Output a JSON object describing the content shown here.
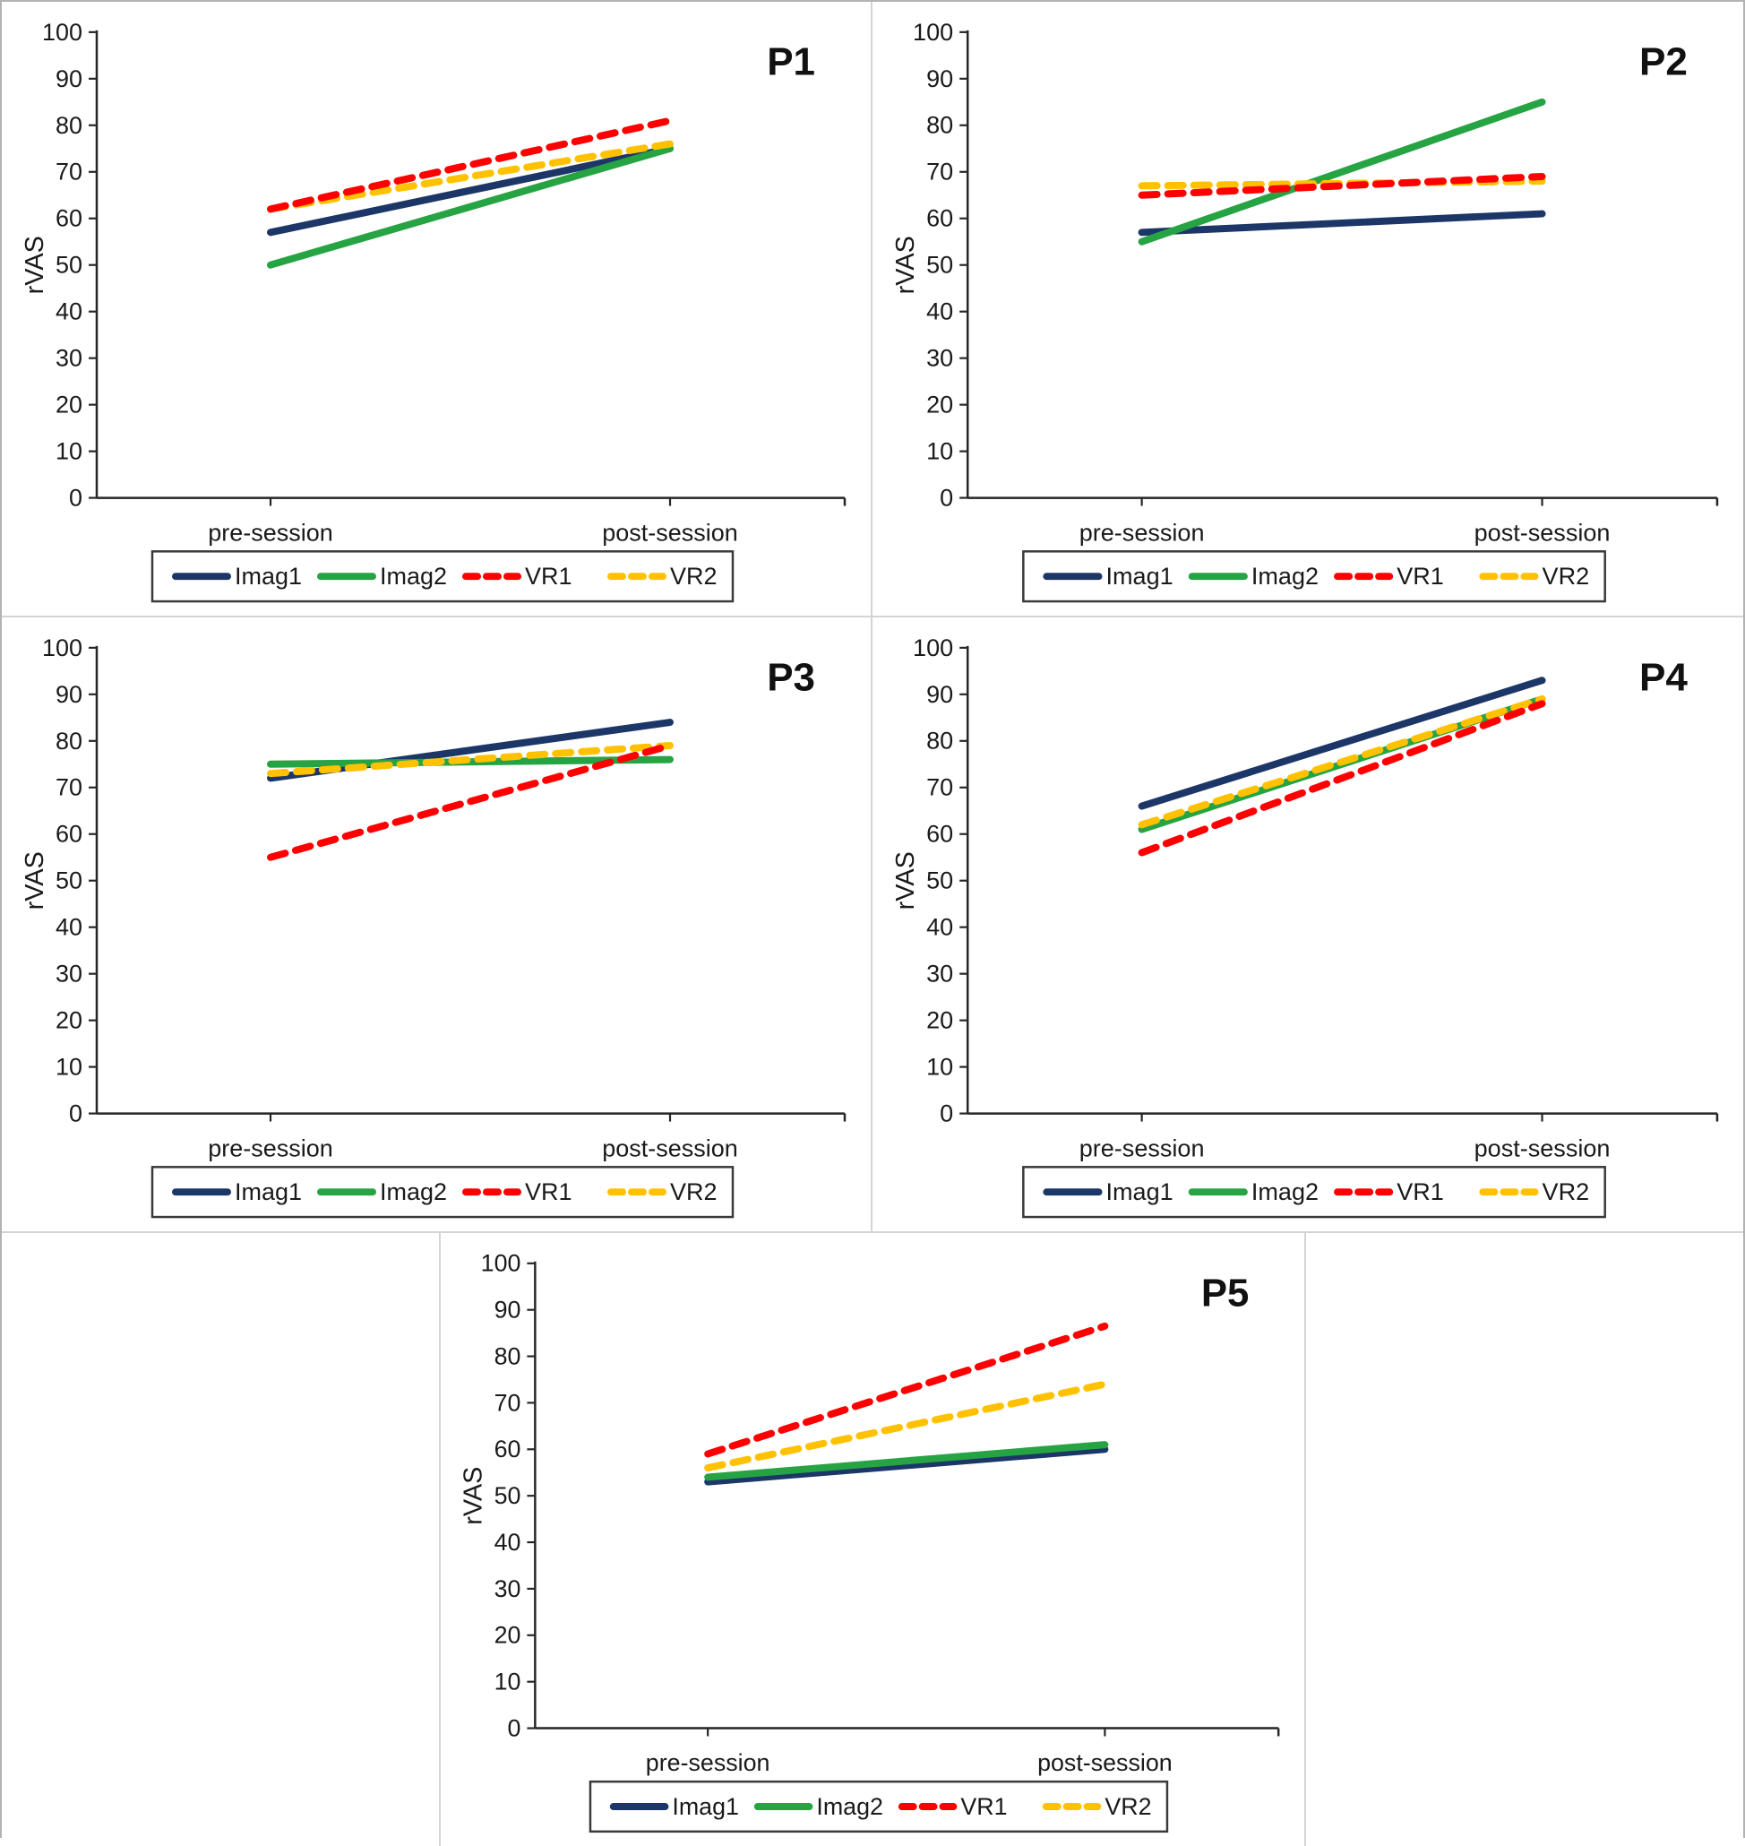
{
  "page": {
    "background": "#ffffff",
    "outer_border_color": "#b3b3b3",
    "divider_color": "#d4d4d4",
    "axis_color": "#262626",
    "text_color": "#1a1a1a",
    "legend_border_color": "#3a3a3a"
  },
  "chart_data": [
    {
      "type": "line",
      "title": "P1",
      "ylabel": "rVAS",
      "xlabel": "",
      "ylim": [
        0,
        100
      ],
      "y_tick_step": 10,
      "grid": false,
      "legend_position": "bottom",
      "categories": [
        "pre-session",
        "post-session"
      ],
      "series": [
        {
          "name": "Imag1",
          "color": "#1c3667",
          "style": "solid",
          "values": [
            57,
            75
          ]
        },
        {
          "name": "Imag2",
          "color": "#26a444",
          "style": "solid",
          "values": [
            50,
            75
          ]
        },
        {
          "name": "VR1",
          "color": "#fe0000",
          "style": "dashed",
          "values": [
            62,
            81
          ]
        },
        {
          "name": "VR2",
          "color": "#ffc100",
          "style": "dashed",
          "values": [
            62,
            76
          ]
        }
      ]
    },
    {
      "type": "line",
      "title": "P2",
      "ylabel": "rVAS",
      "xlabel": "",
      "ylim": [
        0,
        100
      ],
      "y_tick_step": 10,
      "grid": false,
      "legend_position": "bottom",
      "categories": [
        "pre-session",
        "post-session"
      ],
      "series": [
        {
          "name": "Imag1",
          "color": "#1c3667",
          "style": "solid",
          "values": [
            57,
            61
          ]
        },
        {
          "name": "Imag2",
          "color": "#26a444",
          "style": "solid",
          "values": [
            55,
            85
          ]
        },
        {
          "name": "VR1",
          "color": "#fe0000",
          "style": "dashed",
          "values": [
            65,
            69
          ]
        },
        {
          "name": "VR2",
          "color": "#ffc100",
          "style": "dashed",
          "values": [
            67,
            68
          ]
        }
      ]
    },
    {
      "type": "line",
      "title": "P3",
      "ylabel": "rVAS",
      "xlabel": "",
      "ylim": [
        0,
        100
      ],
      "y_tick_step": 10,
      "grid": false,
      "legend_position": "bottom",
      "categories": [
        "pre-session",
        "post-session"
      ],
      "series": [
        {
          "name": "Imag1",
          "color": "#1c3667",
          "style": "solid",
          "values": [
            72,
            84
          ]
        },
        {
          "name": "Imag2",
          "color": "#26a444",
          "style": "solid",
          "values": [
            75,
            76
          ]
        },
        {
          "name": "VR1",
          "color": "#fe0000",
          "style": "dashed",
          "values": [
            55,
            79
          ]
        },
        {
          "name": "VR2",
          "color": "#ffc100",
          "style": "dashed",
          "values": [
            73,
            79
          ]
        }
      ]
    },
    {
      "type": "line",
      "title": "P4",
      "ylabel": "rVAS",
      "xlabel": "",
      "ylim": [
        0,
        100
      ],
      "y_tick_step": 10,
      "grid": false,
      "legend_position": "bottom",
      "categories": [
        "pre-session",
        "post-session"
      ],
      "series": [
        {
          "name": "Imag1",
          "color": "#1c3667",
          "style": "solid",
          "values": [
            66,
            93
          ]
        },
        {
          "name": "Imag2",
          "color": "#26a444",
          "style": "solid",
          "values": [
            61,
            89
          ]
        },
        {
          "name": "VR1",
          "color": "#fe0000",
          "style": "dashed",
          "values": [
            56,
            88
          ]
        },
        {
          "name": "VR2",
          "color": "#ffc100",
          "style": "dashed",
          "values": [
            62,
            89
          ]
        }
      ]
    },
    {
      "type": "line",
      "title": "P5",
      "ylabel": "rVAS",
      "xlabel": "",
      "ylim": [
        0,
        100
      ],
      "y_tick_step": 10,
      "grid": false,
      "legend_position": "bottom",
      "categories": [
        "pre-session",
        "post-session"
      ],
      "series": [
        {
          "name": "Imag1",
          "color": "#1c3667",
          "style": "solid",
          "values": [
            53,
            60
          ]
        },
        {
          "name": "Imag2",
          "color": "#26a444",
          "style": "solid",
          "values": [
            54,
            61
          ]
        },
        {
          "name": "VR1",
          "color": "#fe0000",
          "style": "dashed",
          "values": [
            59,
            86.5
          ]
        },
        {
          "name": "VR2",
          "color": "#ffc100",
          "style": "dashed",
          "values": [
            56,
            74
          ]
        }
      ]
    }
  ]
}
